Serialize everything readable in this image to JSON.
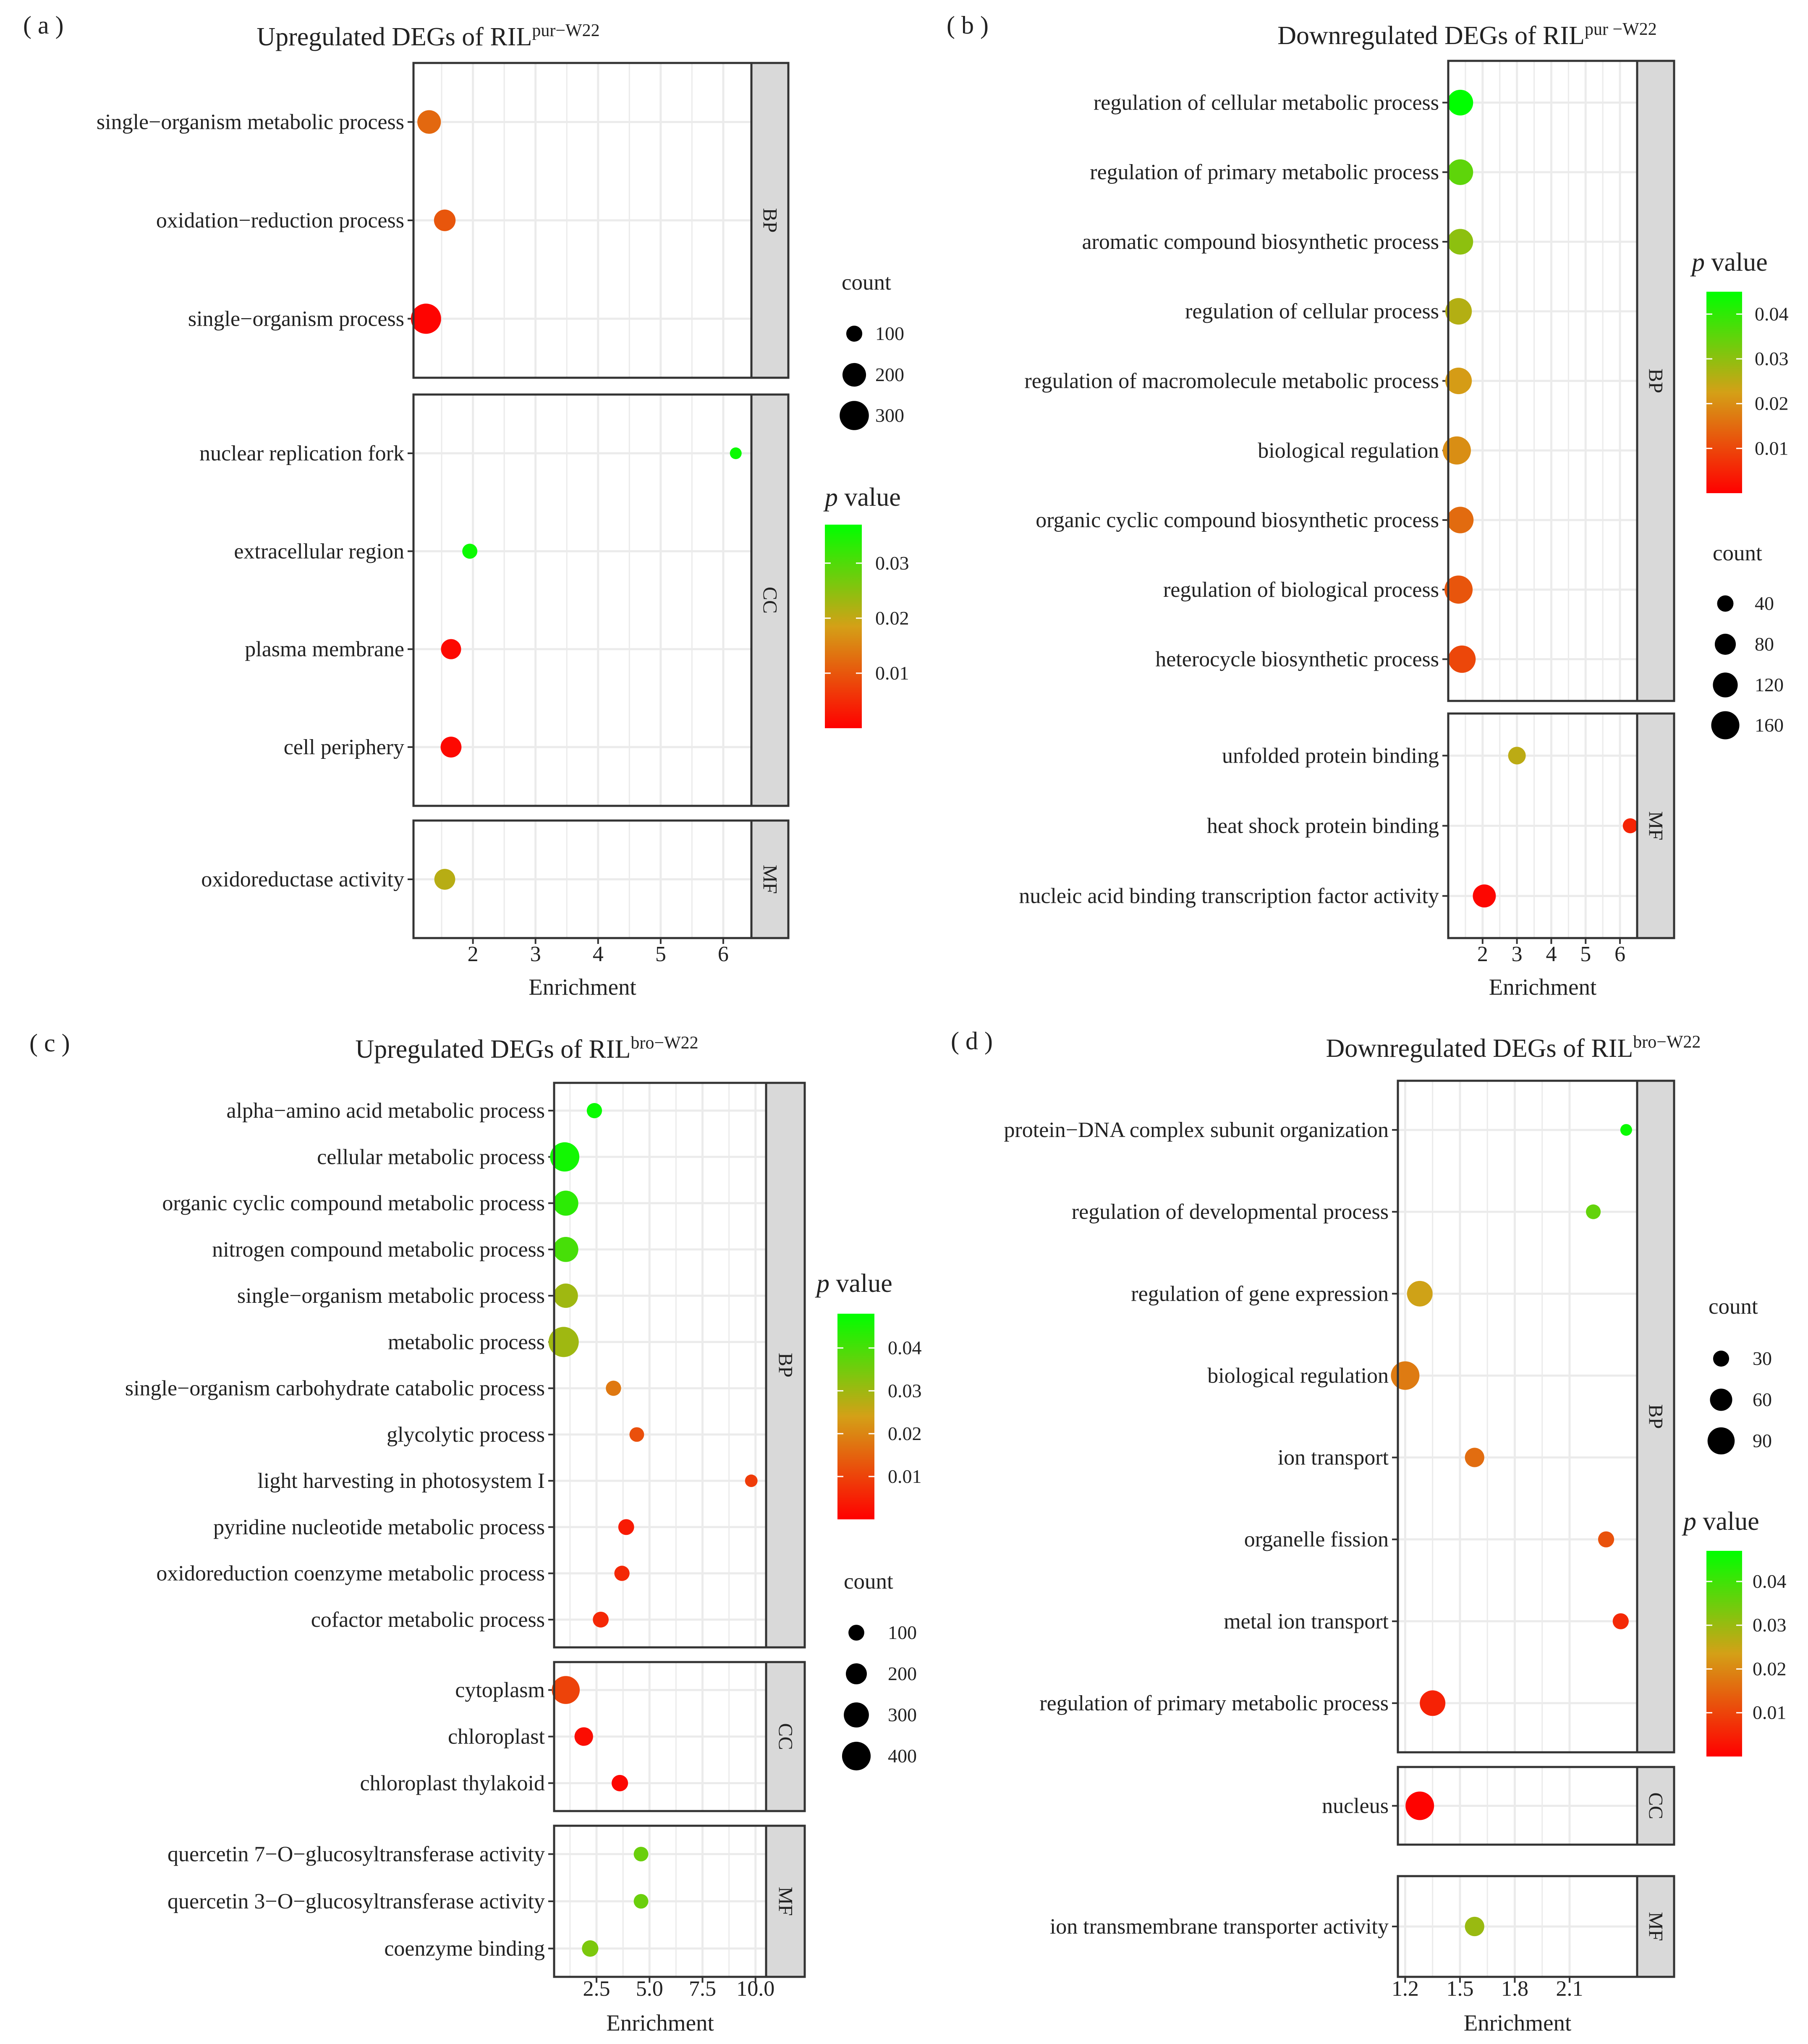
{
  "colors": {
    "p_low": "#ff0000",
    "p_mid": "#d4a017",
    "p_high": "#00ff00",
    "strip_bg": "#d9d9d9",
    "grid": "#ebebeb",
    "frame": "#333333"
  },
  "chart_data": [
    {
      "type": "scatter",
      "panel_tag": "( a )",
      "title": {
        "text": "Upregulated DEGs of RIL",
        "sup": "pur−W22"
      },
      "xlabel": "Enrichment",
      "xlim": [
        1.05,
        6.45
      ],
      "xticks": [
        "2",
        "3",
        "4",
        "5",
        "6"
      ],
      "count_legend": {
        "title": "count",
        "range": [
          60,
          320
        ],
        "items": [
          "100",
          "200",
          "300"
        ]
      },
      "p_legend": {
        "title_italic": "p",
        "title_rest": " value",
        "range": [
          0.0,
          0.037
        ],
        "items": [
          "0.03",
          "0.02",
          "0.01"
        ]
      },
      "facets": [
        {
          "name": "BP",
          "terms": [
            {
              "term": "single−organism metabolic process",
              "enrichment": 1.3,
              "count": 200,
              "p": 0.012
            },
            {
              "term": "oxidation−reduction process",
              "enrichment": 1.55,
              "count": 170,
              "p": 0.01
            },
            {
              "term": "single−organism process",
              "enrichment": 1.25,
              "count": 320,
              "p": 0.0005
            }
          ]
        },
        {
          "name": "CC",
          "terms": [
            {
              "term": "nuclear replication fork",
              "enrichment": 6.2,
              "count": 60,
              "p": 0.036
            },
            {
              "term": "extracellular region",
              "enrichment": 1.95,
              "count": 90,
              "p": 0.036
            },
            {
              "term": "plasma membrane",
              "enrichment": 1.65,
              "count": 150,
              "p": 0.001
            },
            {
              "term": "cell periphery",
              "enrichment": 1.65,
              "count": 160,
              "p": 0.001
            }
          ]
        },
        {
          "name": "MF",
          "terms": [
            {
              "term": "oxidoreductase activity",
              "enrichment": 1.55,
              "count": 160,
              "p": 0.021
            }
          ]
        }
      ]
    },
    {
      "type": "scatter",
      "panel_tag": "( b )",
      "title": {
        "text": "Downregulated DEGs of RIL",
        "sup": "pur −W22"
      },
      "xlabel": "Enrichment",
      "xlim": [
        1.0,
        6.5
      ],
      "xticks": [
        "2",
        "3",
        "4",
        "5",
        "6"
      ],
      "count_legend": {
        "title": "count",
        "range": [
          20,
          165
        ],
        "items": [
          "40",
          "80",
          "120",
          "160"
        ]
      },
      "p_legend": {
        "title_italic": "p",
        "title_rest": " value",
        "range": [
          0.0,
          0.045
        ],
        "items": [
          "0.04",
          "0.03",
          "0.02",
          "0.01"
        ]
      },
      "facets": [
        {
          "name": "BP",
          "terms": [
            {
              "term": "regulation of cellular metabolic process",
              "enrichment": 1.35,
              "count": 130,
              "p": 0.045
            },
            {
              "term": "regulation of primary metabolic process",
              "enrichment": 1.35,
              "count": 130,
              "p": 0.035
            },
            {
              "term": "aromatic compound biosynthetic process",
              "enrichment": 1.35,
              "count": 130,
              "p": 0.03
            },
            {
              "term": "regulation of cellular process",
              "enrichment": 1.3,
              "count": 140,
              "p": 0.026
            },
            {
              "term": "regulation of macromolecule metabolic process",
              "enrichment": 1.3,
              "count": 140,
              "p": 0.022
            },
            {
              "term": "biological regulation",
              "enrichment": 1.25,
              "count": 160,
              "p": 0.02
            },
            {
              "term": "organic cyclic compound biosynthetic process",
              "enrichment": 1.35,
              "count": 140,
              "p": 0.015
            },
            {
              "term": "regulation of biological process",
              "enrichment": 1.3,
              "count": 160,
              "p": 0.012
            },
            {
              "term": "heterocycle biosynthetic process",
              "enrichment": 1.4,
              "count": 150,
              "p": 0.01
            }
          ]
        },
        {
          "name": "MF",
          "terms": [
            {
              "term": "unfolded protein binding",
              "enrichment": 3.0,
              "count": 50,
              "p": 0.025
            },
            {
              "term": "heat shock protein binding",
              "enrichment": 6.3,
              "count": 30,
              "p": 0.005
            },
            {
              "term": "nucleic acid binding transcription factor activity",
              "enrichment": 2.05,
              "count": 100,
              "p": 0.001
            }
          ]
        }
      ]
    },
    {
      "type": "scatter",
      "panel_tag": "( c )",
      "title": {
        "text": "Upregulated DEGs of RIL",
        "sup": "bro−W22"
      },
      "xlabel": "Enrichment",
      "xlim": [
        0.5,
        10.5
      ],
      "xticks": [
        "2.5",
        "5.0",
        "7.5",
        "10.0"
      ],
      "count_legend": {
        "title": "count",
        "range": [
          40,
          450
        ],
        "items": [
          "100",
          "200",
          "300",
          "400"
        ]
      },
      "p_legend": {
        "title_italic": "p",
        "title_rest": " value",
        "range": [
          0.0,
          0.048
        ],
        "items": [
          "0.04",
          "0.03",
          "0.02",
          "0.01"
        ]
      },
      "facets": [
        {
          "name": "BP",
          "terms": [
            {
              "term": "alpha−amino acid metabolic process",
              "enrichment": 2.4,
              "count": 90,
              "p": 0.047
            },
            {
              "term": "cellular metabolic process",
              "enrichment": 1.0,
              "count": 420,
              "p": 0.046
            },
            {
              "term": "organic cyclic compound metabolic process",
              "enrichment": 1.05,
              "count": 300,
              "p": 0.043
            },
            {
              "term": "nitrogen compound metabolic process",
              "enrichment": 1.05,
              "count": 300,
              "p": 0.04
            },
            {
              "term": "single−organism metabolic process",
              "enrichment": 1.05,
              "count": 280,
              "p": 0.03
            },
            {
              "term": "metabolic process",
              "enrichment": 0.95,
              "count": 450,
              "p": 0.03
            },
            {
              "term": "single−organism carbohydrate catabolic process",
              "enrichment": 3.3,
              "count": 90,
              "p": 0.018
            },
            {
              "term": "glycolytic process",
              "enrichment": 4.4,
              "count": 80,
              "p": 0.012
            },
            {
              "term": "light harvesting in photosystem I",
              "enrichment": 9.8,
              "count": 50,
              "p": 0.009
            },
            {
              "term": "pyridine nucleotide metabolic process",
              "enrichment": 3.9,
              "count": 100,
              "p": 0.004
            },
            {
              "term": "oxidoreduction coenzyme metabolic process",
              "enrichment": 3.7,
              "count": 90,
              "p": 0.006
            },
            {
              "term": "cofactor metabolic process",
              "enrichment": 2.7,
              "count": 100,
              "p": 0.006
            }
          ]
        },
        {
          "name": "CC",
          "terms": [
            {
              "term": "cytoplasm",
              "enrichment": 1.05,
              "count": 380,
              "p": 0.01
            },
            {
              "term": "chloroplast",
              "enrichment": 1.9,
              "count": 150,
              "p": 0.002
            },
            {
              "term": "chloroplast thylakoid",
              "enrichment": 3.6,
              "count": 110,
              "p": 0.001
            }
          ]
        },
        {
          "name": "MF",
          "terms": [
            {
              "term": "quercetin 7−O−glucosyltransferase activity",
              "enrichment": 4.6,
              "count": 80,
              "p": 0.036
            },
            {
              "term": "quercetin 3−O−glucosyltransferase activity",
              "enrichment": 4.6,
              "count": 80,
              "p": 0.036
            },
            {
              "term": "coenzyme binding",
              "enrichment": 2.2,
              "count": 110,
              "p": 0.034
            }
          ]
        }
      ]
    },
    {
      "type": "scatter",
      "panel_tag": "( d )",
      "title": {
        "text": "Downregulated DEGs of RIL",
        "sup": "bro−W22"
      },
      "xlabel": "Enrichment",
      "xlim": [
        1.16,
        2.47
      ],
      "xticks": [
        "1.2",
        "1.5",
        "1.8",
        "2.1"
      ],
      "count_legend": {
        "title": "count",
        "range": [
          15,
          100
        ],
        "items": [
          "30",
          "60",
          "90"
        ]
      },
      "p_legend": {
        "title_italic": "p",
        "title_rest": " value",
        "range": [
          0.0,
          0.047
        ],
        "items": [
          "0.04",
          "0.03",
          "0.02",
          "0.01"
        ]
      },
      "facets": [
        {
          "name": "BP",
          "terms": [
            {
              "term": "protein−DNA complex subunit organization",
              "enrichment": 2.41,
              "count": 15,
              "p": 0.046
            },
            {
              "term": "regulation of developmental process",
              "enrichment": 2.23,
              "count": 25,
              "p": 0.036
            },
            {
              "term": "regulation of gene expression",
              "enrichment": 1.28,
              "count": 80,
              "p": 0.024
            },
            {
              "term": "biological regulation",
              "enrichment": 1.2,
              "count": 100,
              "p": 0.018
            },
            {
              "term": "ion transport",
              "enrichment": 1.58,
              "count": 45,
              "p": 0.016
            },
            {
              "term": "organelle fission",
              "enrichment": 2.3,
              "count": 30,
              "p": 0.012
            },
            {
              "term": "metal ion transport",
              "enrichment": 2.38,
              "count": 30,
              "p": 0.006
            },
            {
              "term": "regulation of primary metabolic process",
              "enrichment": 1.35,
              "count": 80,
              "p": 0.005
            }
          ]
        },
        {
          "name": "CC",
          "terms": [
            {
              "term": "nucleus",
              "enrichment": 1.28,
              "count": 100,
              "p": 0.0005
            }
          ]
        },
        {
          "name": "MF",
          "terms": [
            {
              "term": "ion transmembrane transporter activity",
              "enrichment": 1.58,
              "count": 45,
              "p": 0.03
            }
          ]
        }
      ]
    }
  ]
}
